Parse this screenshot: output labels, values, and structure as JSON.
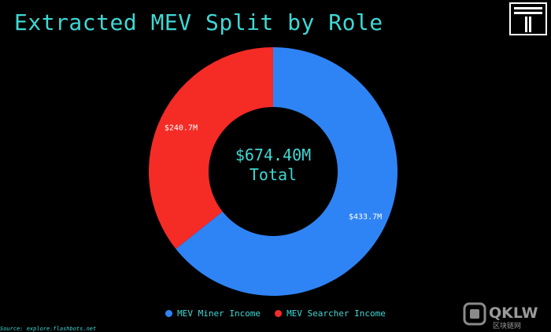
{
  "chart_data": {
    "type": "pie",
    "title": "Extracted MEV Split by Role",
    "categories": [
      "MEV Miner Income",
      "MEV Searcher Income"
    ],
    "values": [
      433.7,
      240.7
    ],
    "value_labels": [
      "$433.7M",
      "$240.7M"
    ],
    "colors": [
      "#2f84f5",
      "#f52b26"
    ],
    "center_value": "$674.40M",
    "center_label": "Total",
    "donut": true,
    "legend_position": "bottom"
  },
  "source": "Source: explore.flashbots.net",
  "logo_letter": "T",
  "watermark": {
    "main": "QKLW",
    "sub": "区块链网"
  }
}
